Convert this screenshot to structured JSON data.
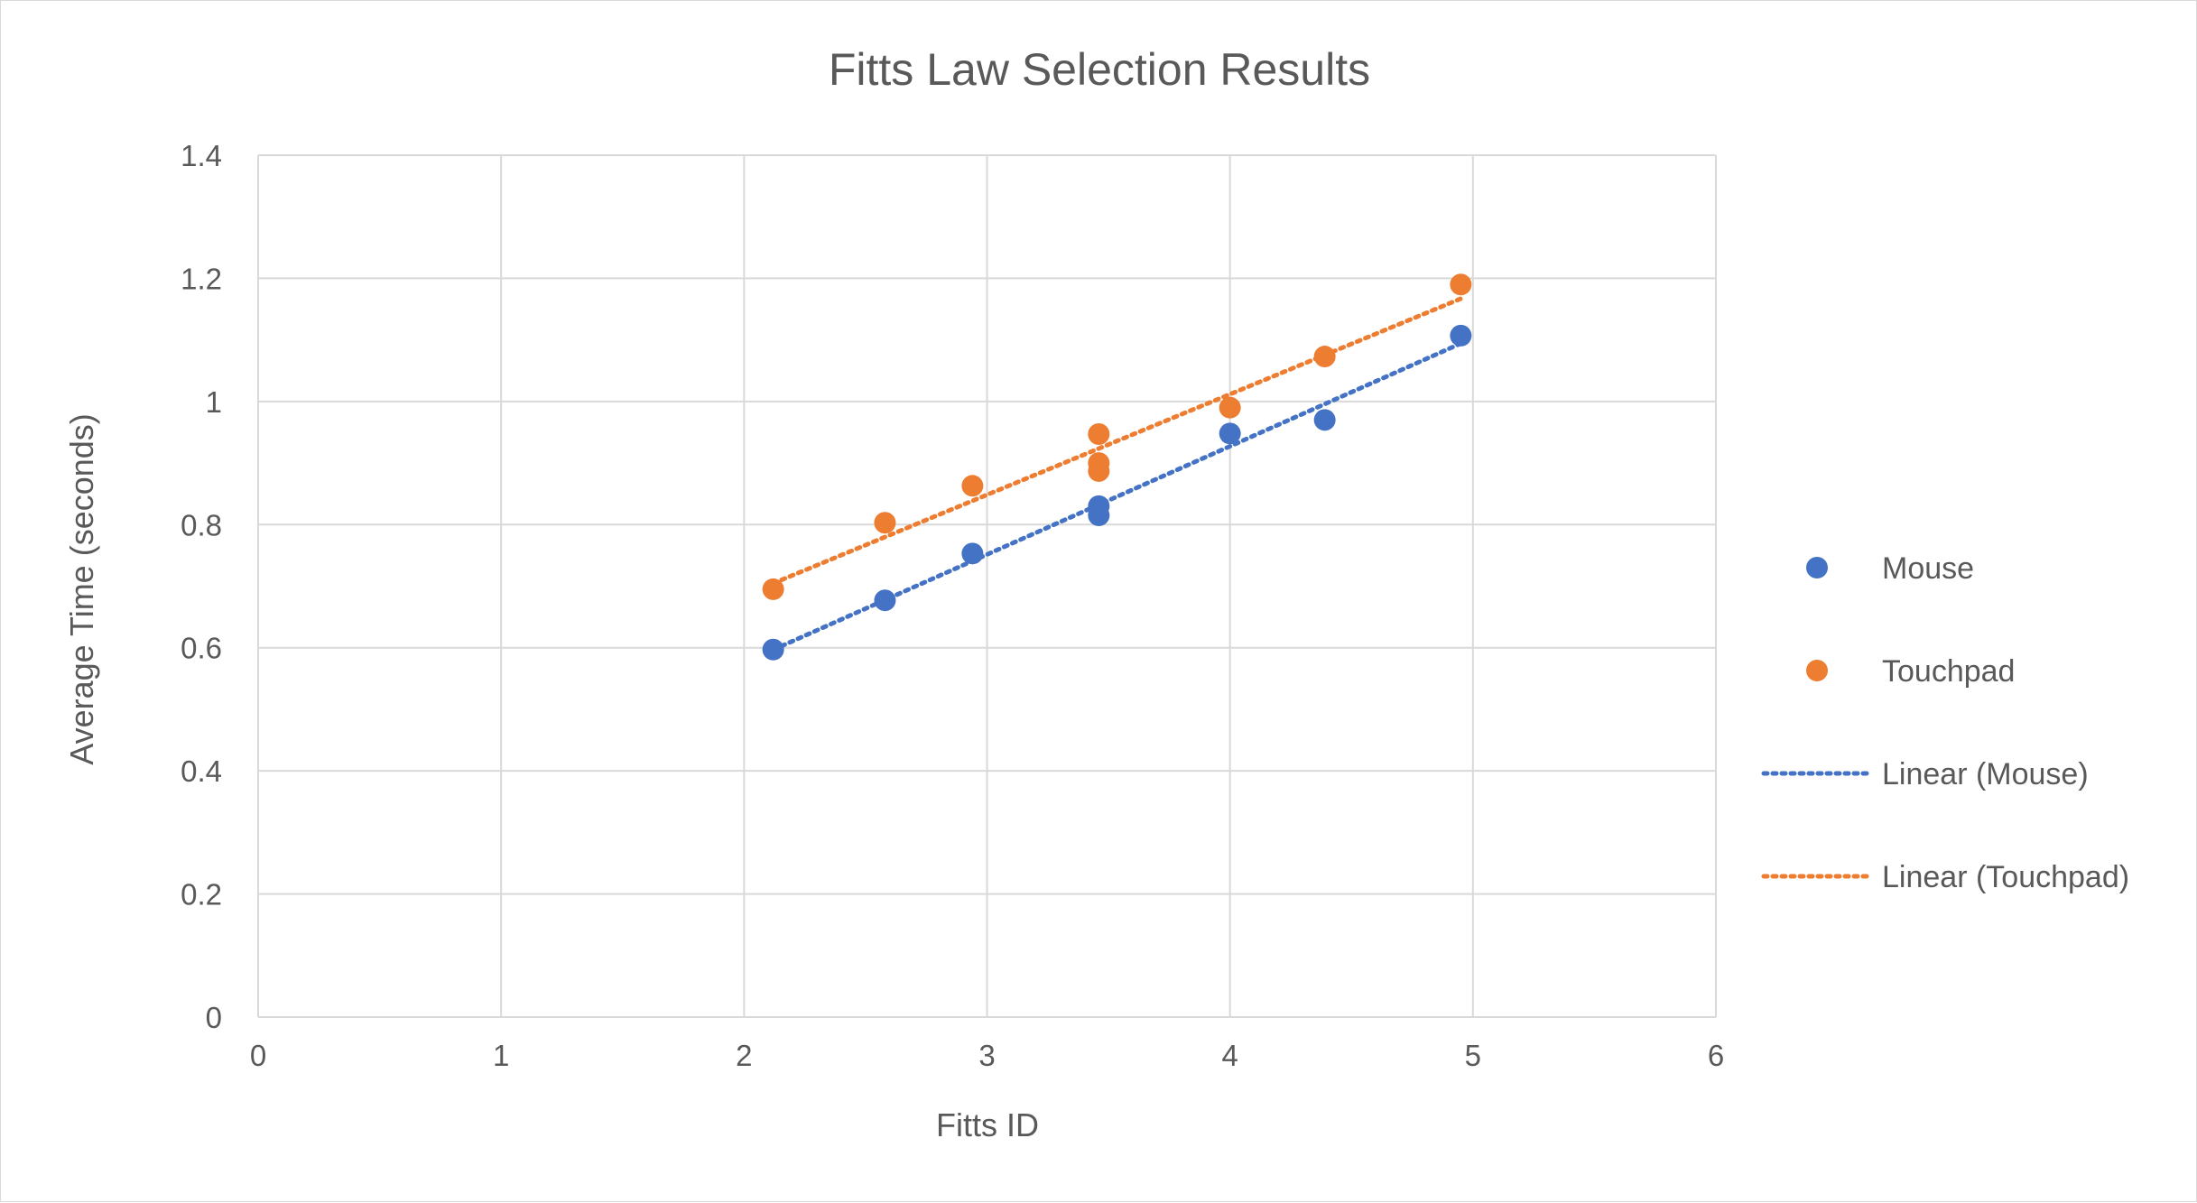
{
  "chart_data": {
    "type": "scatter",
    "title": "Fitts Law Selection Results",
    "xlabel": "Fitts ID",
    "ylabel": "Average Time (seconds)",
    "xlim": [
      0,
      6
    ],
    "ylim": [
      0,
      1.4
    ],
    "x_ticks": [
      "0",
      "1",
      "2",
      "3",
      "4",
      "5",
      "6"
    ],
    "y_ticks": [
      "0",
      "0.2",
      "0.4",
      "0.6",
      "0.8",
      "1",
      "1.2",
      "1.4"
    ],
    "grid": true,
    "legend_position": "right",
    "series": [
      {
        "name": "Mouse",
        "color": "#4472C4",
        "points": [
          {
            "x": 2.12,
            "y": 0.597
          },
          {
            "x": 2.58,
            "y": 0.677
          },
          {
            "x": 2.94,
            "y": 0.753
          },
          {
            "x": 3.46,
            "y": 0.83
          },
          {
            "x": 3.46,
            "y": 0.815
          },
          {
            "x": 4.0,
            "y": 0.948
          },
          {
            "x": 4.39,
            "y": 0.97
          },
          {
            "x": 4.95,
            "y": 1.107
          }
        ]
      },
      {
        "name": "Touchpad",
        "color": "#ED7D31",
        "points": [
          {
            "x": 2.12,
            "y": 0.695
          },
          {
            "x": 2.58,
            "y": 0.803
          },
          {
            "x": 2.94,
            "y": 0.863
          },
          {
            "x": 3.46,
            "y": 0.947
          },
          {
            "x": 3.46,
            "y": 0.9
          },
          {
            "x": 3.46,
            "y": 0.887
          },
          {
            "x": 4.0,
            "y": 0.99
          },
          {
            "x": 4.39,
            "y": 1.073
          },
          {
            "x": 4.95,
            "y": 1.19
          }
        ]
      }
    ],
    "trendlines": [
      {
        "name": "Linear (Mouse)",
        "color": "#4472C4",
        "series": "Mouse",
        "style": "dotted"
      },
      {
        "name": "Linear (Touchpad)",
        "color": "#ED7D31",
        "series": "Touchpad",
        "style": "dotted"
      }
    ]
  }
}
